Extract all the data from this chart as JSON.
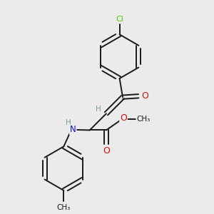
{
  "background_color": "#ebebeb",
  "bond_color": "#1a1a1a",
  "atom_colors": {
    "C": "#1a1a1a",
    "H": "#7a9a9a",
    "N": "#1010cc",
    "O": "#cc1010",
    "Cl": "#55cc00"
  },
  "figsize": [
    3.0,
    3.0
  ],
  "dpi": 100
}
